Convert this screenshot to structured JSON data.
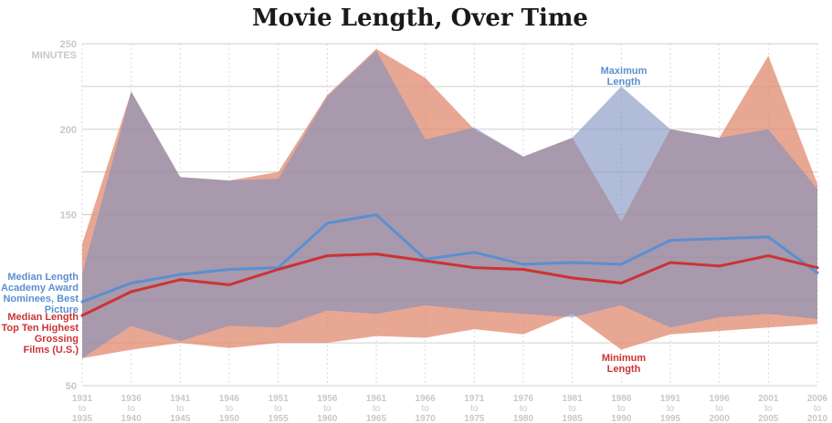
{
  "title": "Movie Length, Over Time",
  "chart_data": {
    "type": "area",
    "title": "Movie Length, Over Time",
    "ylabel": "MINUTES",
    "ylim": [
      50,
      250
    ],
    "yticks": [
      50,
      150,
      200,
      250
    ],
    "grid": true,
    "categories": [
      [
        "1931",
        "to",
        "1935"
      ],
      [
        "1936",
        "to",
        "1940"
      ],
      [
        "1941",
        "to",
        "1945"
      ],
      [
        "1946",
        "to",
        "1950"
      ],
      [
        "1951",
        "to",
        "1955"
      ],
      [
        "1956",
        "to",
        "1960"
      ],
      [
        "1961",
        "to",
        "1965"
      ],
      [
        "1966",
        "to",
        "1970"
      ],
      [
        "1971",
        "to",
        "1975"
      ],
      [
        "1976",
        "to",
        "1980"
      ],
      [
        "1981",
        "to",
        "1985"
      ],
      [
        "1986",
        "to",
        "1990"
      ],
      [
        "1991",
        "to",
        "1995"
      ],
      [
        "1996",
        "to",
        "2000"
      ],
      [
        "2001",
        "to",
        "2005"
      ],
      [
        "2006",
        "to",
        "2010"
      ]
    ],
    "colors": {
      "grossing_band": "#e08a6d",
      "academy_band": "#7d8fbf",
      "grossing_line": "#cc3333",
      "academy_line": "#5b8fd0"
    },
    "series": [
      {
        "role": "grossing_max",
        "values": [
          133,
          222,
          172,
          170,
          175,
          220,
          247,
          230,
          200,
          184,
          195,
          146,
          200,
          195,
          243,
          168
        ]
      },
      {
        "role": "grossing_min",
        "values": [
          66,
          71,
          75,
          72,
          75,
          75,
          79,
          78,
          83,
          80,
          92,
          71,
          80,
          82,
          84,
          86
        ]
      },
      {
        "role": "academy_max",
        "values": [
          115,
          222,
          172,
          170,
          171,
          219,
          246,
          194,
          201,
          184,
          195,
          225,
          200,
          195,
          200,
          165
        ]
      },
      {
        "role": "academy_min",
        "values": [
          66,
          85,
          76,
          85,
          84,
          94,
          92,
          97,
          94,
          92,
          90,
          97,
          84,
          90,
          92,
          89
        ]
      },
      {
        "role": "academy_median",
        "name": "Median Length Academy Award Nominees, Best Picture",
        "values": [
          99,
          110,
          115,
          118,
          119,
          145,
          150,
          124,
          128,
          121,
          122,
          121,
          135,
          136,
          137,
          116
        ]
      },
      {
        "role": "grossing_median",
        "name": "Median Length Top Ten Highest Grossing Films (U.S.)",
        "values": [
          91,
          105,
          112,
          109,
          118,
          126,
          127,
          123,
          119,
          118,
          113,
          110,
          122,
          120,
          126,
          119
        ]
      }
    ],
    "annotations": {
      "max_label": [
        "Maximum",
        "Length"
      ],
      "min_label": [
        "Minimum",
        "Length"
      ],
      "academy_label": [
        "Median Length",
        "Academy Award",
        "Nominees, Best",
        "Picture"
      ],
      "grossing_label": [
        "Median Length",
        "Top Ten Highest",
        "Grossing",
        "Films (U.S.)"
      ]
    }
  }
}
